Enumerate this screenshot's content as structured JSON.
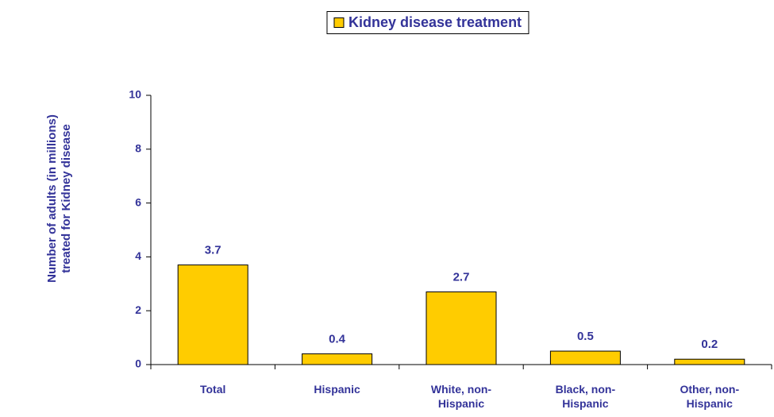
{
  "chart_data": {
    "type": "bar",
    "y_label": "Number of adults (in millions) treated for Kidney disease",
    "categories": [
      "Total",
      "Hispanic",
      "White, non-Hispanic",
      "Black, non-Hispanic",
      "Other, non-Hispanic"
    ],
    "series": [
      {
        "name": "Kidney disease treatment",
        "color": "#ffcc00",
        "values": [
          3.7,
          0.4,
          2.7,
          0.5,
          0.2
        ]
      }
    ],
    "ylim": [
      0,
      10
    ],
    "yticks": [
      0,
      2,
      4,
      6,
      8,
      10
    ],
    "legend": "top"
  }
}
